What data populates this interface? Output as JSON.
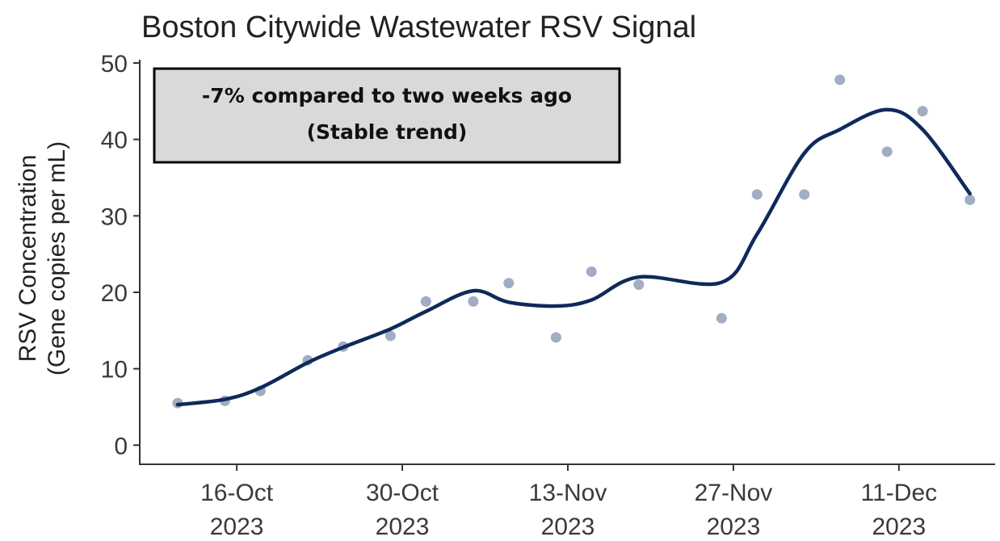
{
  "chart_data": {
    "type": "scatter",
    "title": "Boston Citywide Wastewater RSV Signal",
    "ylabel": [
      "RSV Concentration",
      "(Gene copies per mL)"
    ],
    "annotation": [
      "-7% compared to two weeks ago",
      "(Stable trend)"
    ],
    "x": [
      "2023-10-11",
      "2023-10-15",
      "2023-10-18",
      "2023-10-22",
      "2023-10-25",
      "2023-10-29",
      "2023-11-01",
      "2023-11-05",
      "2023-11-08",
      "2023-11-12",
      "2023-11-15",
      "2023-11-19",
      "2023-11-26",
      "2023-11-29",
      "2023-12-03",
      "2023-12-06",
      "2023-12-10",
      "2023-12-13",
      "2023-12-17"
    ],
    "series": [
      {
        "type": "scatter",
        "color": "#8390ad",
        "values": [
          5.5,
          5.8,
          7.1,
          11.1,
          12.9,
          14.3,
          18.8,
          18.8,
          21.2,
          14.1,
          22.7,
          21.0,
          16.6,
          32.8,
          32.8,
          47.8,
          38.4,
          43.7,
          32.1
        ]
      },
      {
        "type": "line",
        "color": "#0e2a5a",
        "values": [
          5.3,
          6.0,
          7.5,
          10.8,
          12.8,
          15.2,
          17.5,
          20.2,
          18.7,
          18.2,
          19.0,
          22.0,
          21.3,
          27.6,
          38.2,
          41.3,
          43.9,
          41.3,
          32.9
        ]
      }
    ],
    "xlim": [
      "2023-10-08",
      "2023-12-19"
    ],
    "xticks": [
      {
        "value": "2023-10-16",
        "label": "16-Oct 2023"
      },
      {
        "value": "2023-10-30",
        "label": "30-Oct 2023"
      },
      {
        "value": "2023-11-13",
        "label": "13-Nov 2023"
      },
      {
        "value": "2023-11-27",
        "label": "27-Nov 2023"
      },
      {
        "value": "2023-12-11",
        "label": "11-Dec 2023"
      }
    ],
    "ylim": [
      -2.5,
      50
    ],
    "yticks": [
      0,
      10,
      20,
      30,
      40,
      50
    ],
    "grid": false
  }
}
